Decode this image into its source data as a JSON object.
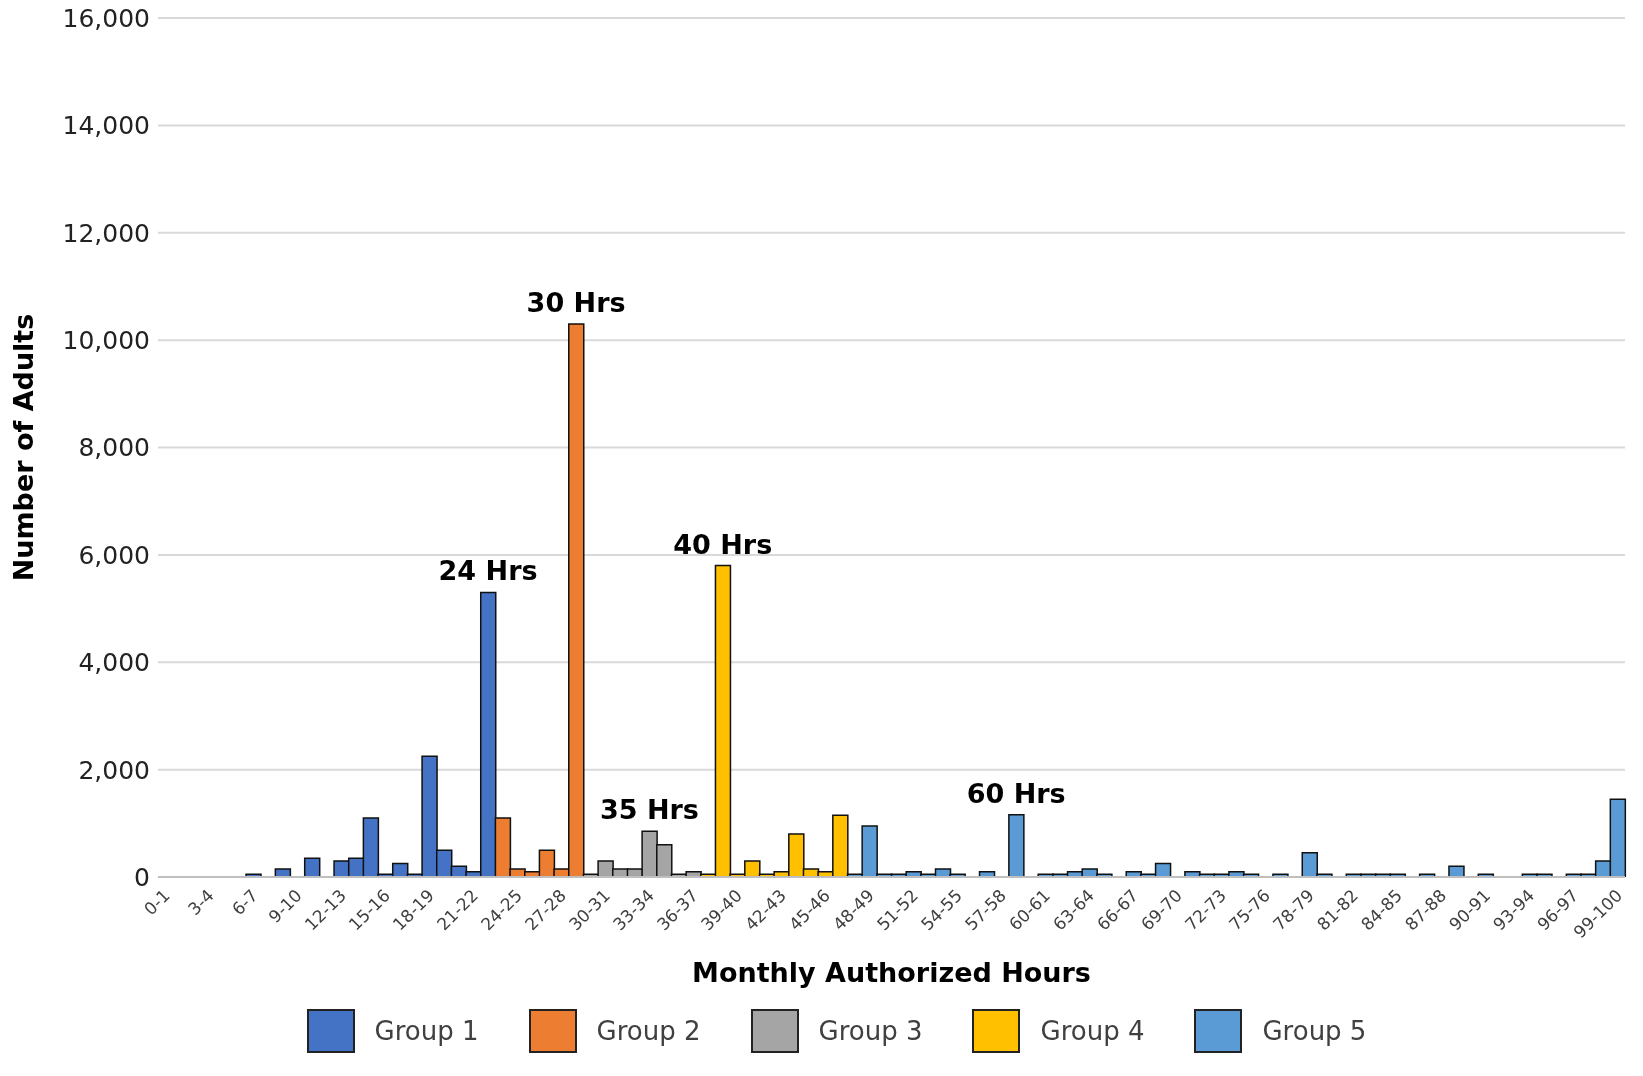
{
  "chart_data": {
    "type": "bar",
    "stacked": true,
    "xlabel": "Monthly Authorized Hours",
    "ylabel": "Number of Adults",
    "categories": [
      "0-1",
      null,
      null,
      "3-4",
      null,
      null,
      "6-7",
      null,
      null,
      "9-10",
      null,
      null,
      "12-13",
      null,
      null,
      "15-16",
      null,
      null,
      "18-19",
      null,
      null,
      "21-22",
      null,
      null,
      "24-25",
      null,
      null,
      "27-28",
      null,
      null,
      "30-31",
      null,
      null,
      "33-34",
      null,
      null,
      "36-37",
      null,
      null,
      "39-40",
      null,
      null,
      "42-43",
      null,
      null,
      "45-46",
      null,
      null,
      "48-49",
      null,
      null,
      "51-52",
      null,
      null,
      "54-55",
      null,
      null,
      "57-58",
      null,
      null,
      "60-61",
      null,
      null,
      "63-64",
      null,
      null,
      "66-67",
      null,
      null,
      "69-70",
      null,
      null,
      "72-73",
      null,
      null,
      "75-76",
      null,
      null,
      "78-79",
      null,
      null,
      "81-82",
      null,
      null,
      "84-85",
      null,
      null,
      "87-88",
      null,
      null,
      "90-91",
      null,
      null,
      "93-94",
      null,
      null,
      "96-97",
      null,
      null,
      "99-100"
    ],
    "series": [
      {
        "name": "Group 1",
        "color": "#4472c4",
        "values": [
          0,
          0,
          0,
          0,
          0,
          0,
          50,
          0,
          150,
          0,
          350,
          0,
          300,
          350,
          1100,
          50,
          250,
          50,
          2250,
          500,
          200,
          100,
          5300,
          null,
          null,
          null,
          null,
          null,
          null,
          null,
          null,
          null,
          null,
          null,
          null,
          null,
          null,
          null,
          null,
          null,
          null,
          null,
          null,
          null,
          null,
          null,
          null,
          null,
          null,
          null,
          null,
          null,
          null,
          null,
          null,
          null,
          null,
          null,
          null,
          null,
          null,
          null,
          null,
          null,
          null,
          null,
          null,
          null,
          null,
          null,
          null,
          null,
          null,
          null,
          null,
          null,
          null,
          null,
          null,
          null,
          null,
          null,
          null,
          null,
          null,
          null,
          null,
          null,
          null,
          null,
          null,
          null,
          null,
          null,
          null,
          null,
          null,
          null,
          null,
          null
        ]
      },
      {
        "name": "Group 2",
        "color": "#ed7d31",
        "values": [
          null,
          null,
          null,
          null,
          null,
          null,
          null,
          null,
          null,
          null,
          null,
          null,
          null,
          null,
          null,
          null,
          null,
          null,
          null,
          null,
          null,
          null,
          null,
          1100,
          150,
          100,
          500,
          150,
          10300,
          null,
          null,
          null,
          null,
          null,
          null,
          null,
          null,
          null,
          null,
          null,
          null,
          null,
          null,
          null,
          null,
          null,
          null,
          null,
          null,
          null,
          null,
          null,
          null,
          null,
          null,
          null,
          null,
          null,
          null,
          null,
          null,
          null,
          null,
          null,
          null,
          null,
          null,
          null,
          null,
          null,
          null,
          null,
          null,
          null,
          null,
          null,
          null,
          null,
          null,
          null,
          null,
          null,
          null,
          null,
          null,
          null,
          null,
          null,
          null,
          null,
          null,
          null,
          null,
          null,
          null,
          null,
          null,
          null,
          null,
          null
        ]
      },
      {
        "name": "Group 3",
        "color": "#a5a5a5",
        "values": [
          null,
          null,
          null,
          null,
          null,
          null,
          null,
          null,
          null,
          null,
          null,
          null,
          null,
          null,
          null,
          null,
          null,
          null,
          null,
          null,
          null,
          null,
          null,
          null,
          null,
          null,
          null,
          null,
          null,
          50,
          300,
          150,
          150,
          850,
          600,
          50,
          100,
          null,
          null,
          null,
          null,
          null,
          null,
          null,
          null,
          null,
          null,
          null,
          null,
          null,
          null,
          null,
          null,
          null,
          null,
          null,
          null,
          null,
          null,
          null,
          null,
          null,
          null,
          null,
          null,
          null,
          null,
          null,
          null,
          null,
          null,
          null,
          null,
          null,
          null,
          null,
          null,
          null,
          null,
          null,
          null,
          null,
          null,
          null,
          null,
          null,
          null,
          null,
          null,
          null,
          null,
          null,
          null,
          null,
          null,
          null,
          null,
          null,
          null,
          null
        ]
      },
      {
        "name": "Group 4",
        "color": "#ffc000",
        "values": [
          null,
          null,
          null,
          null,
          null,
          null,
          null,
          null,
          null,
          null,
          null,
          null,
          null,
          null,
          null,
          null,
          null,
          null,
          null,
          null,
          null,
          null,
          null,
          null,
          null,
          null,
          null,
          null,
          null,
          null,
          null,
          null,
          null,
          null,
          null,
          null,
          null,
          50,
          5800,
          50,
          300,
          50,
          100,
          800,
          150,
          100,
          1150,
          null,
          null,
          null,
          null,
          null,
          null,
          null,
          null,
          null,
          null,
          null,
          null,
          null,
          null,
          null,
          null,
          null,
          null,
          null,
          null,
          null,
          null,
          null,
          null,
          null,
          null,
          null,
          null,
          null,
          null,
          null,
          null,
          null,
          null,
          null,
          null,
          null,
          null,
          null,
          null,
          null,
          null,
          null,
          null,
          null,
          null,
          null,
          null,
          null,
          null,
          null,
          null,
          null
        ]
      },
      {
        "name": "Group 5",
        "color": "#5b9bd5",
        "values": [
          null,
          null,
          null,
          null,
          null,
          null,
          null,
          null,
          null,
          null,
          null,
          null,
          null,
          null,
          null,
          null,
          null,
          null,
          null,
          null,
          null,
          null,
          null,
          null,
          null,
          null,
          null,
          null,
          null,
          null,
          null,
          null,
          null,
          null,
          null,
          null,
          null,
          null,
          null,
          null,
          null,
          null,
          null,
          null,
          null,
          null,
          null,
          50,
          950,
          50,
          50,
          100,
          50,
          150,
          50,
          0,
          100,
          0,
          1160,
          0,
          50,
          50,
          100,
          150,
          50,
          0,
          100,
          50,
          250,
          0,
          100,
          50,
          50,
          100,
          50,
          0,
          50,
          0,
          450,
          50,
          0,
          50,
          50,
          50,
          50,
          0,
          50,
          0,
          200,
          0,
          50,
          0,
          0,
          50,
          50,
          0,
          50,
          50,
          300,
          1450
        ]
      }
    ],
    "ylim": [
      0,
      16000
    ],
    "yticks": [
      {
        "value": 0,
        "label": "0"
      },
      {
        "value": 2000,
        "label": "2,000"
      },
      {
        "value": 4000,
        "label": "4,000"
      },
      {
        "value": 6000,
        "label": "6,000"
      },
      {
        "value": 8000,
        "label": "8,000"
      },
      {
        "value": 10000,
        "label": "10,000"
      },
      {
        "value": 12000,
        "label": "12,000"
      },
      {
        "value": 14000,
        "label": "14,000"
      },
      {
        "value": 16000,
        "label": "16,000"
      }
    ],
    "grid": "y",
    "legend": "bottom",
    "annotations": [
      {
        "text": "24 Hrs",
        "y": 5300
      },
      {
        "text": "30 Hrs",
        "y": 10300
      },
      {
        "text": "35 Hrs",
        "y": 850
      },
      {
        "text": "40 Hrs",
        "y": 5800
      },
      {
        "text": "60 Hrs",
        "y": 1160
      }
    ]
  }
}
